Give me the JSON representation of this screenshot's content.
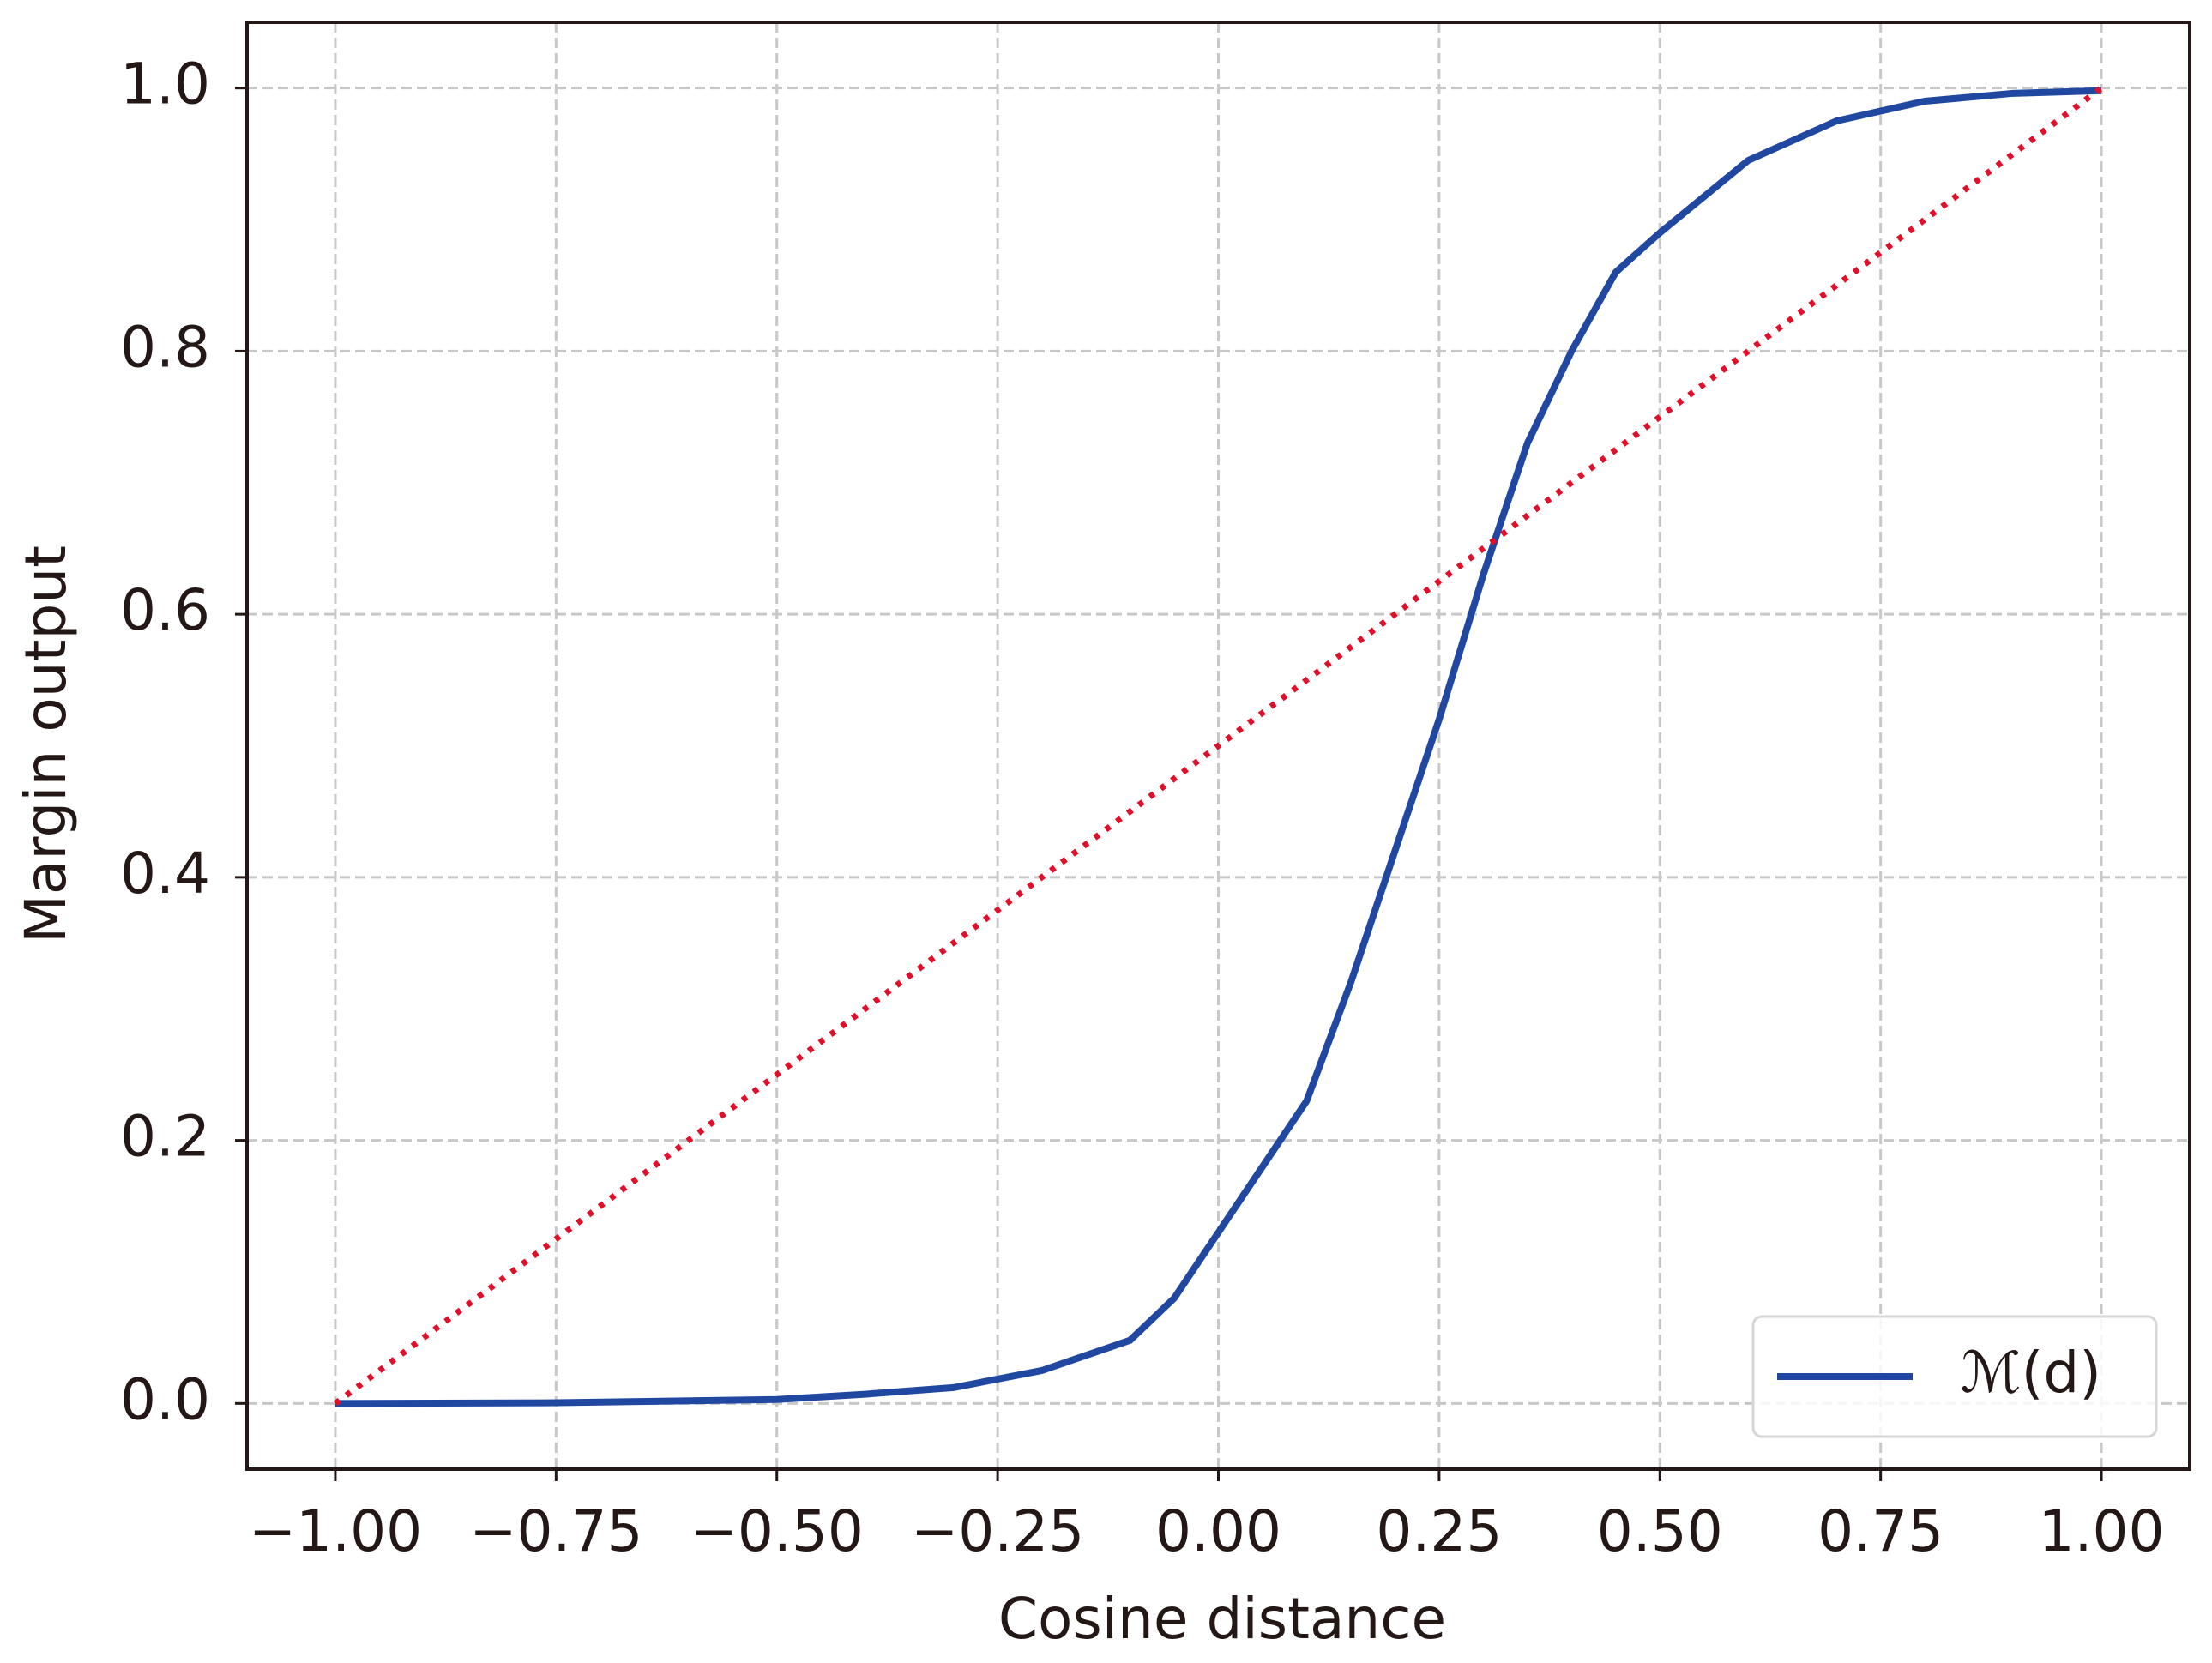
{
  "chart_data": {
    "type": "line",
    "x_label": "Cosine distance",
    "y_label": "Margin output",
    "xlim": [
      -1.1,
      1.1
    ],
    "ylim": [
      -0.05,
      1.05
    ],
    "xticks": [
      {
        "value": -1,
        "label": "−1.00"
      },
      {
        "value": -0.75,
        "label": "−0.75"
      },
      {
        "value": -0.5,
        "label": "−0.50"
      },
      {
        "value": -0.25,
        "label": "−0.25"
      },
      {
        "value": 0,
        "label": "0.00"
      },
      {
        "value": 0.25,
        "label": "0.25"
      },
      {
        "value": 0.5,
        "label": "0.50"
      },
      {
        "value": 0.75,
        "label": "0.75"
      },
      {
        "value": 1,
        "label": "1.00"
      }
    ],
    "yticks": [
      {
        "value": 0,
        "label": "0.0"
      },
      0.2,
      0.4,
      0.6,
      0.8,
      {
        "value": 1,
        "label": "1.0"
      }
    ],
    "grid": true,
    "legend_position": "lower right",
    "series": [
      {
        "name": "ℳ(d)",
        "color": "#2148a0",
        "style": "solid",
        "x": [
          -1,
          -0.75,
          -0.5,
          -0.4,
          -0.3,
          -0.2,
          -0.1,
          -0.05,
          0,
          0.05,
          0.1,
          0.15,
          0.2,
          0.25,
          0.3,
          0.35,
          0.4,
          0.45,
          0.5,
          0.6,
          0.7,
          0.8,
          0.9,
          1
        ],
        "values": [
          0,
          0.0005,
          0.003,
          0.007,
          0.012,
          0.025,
          0.048,
          0.08,
          0.13,
          0.18,
          0.23,
          0.32,
          0.42,
          0.52,
          0.63,
          0.73,
          0.8,
          0.86,
          0.89,
          0.945,
          0.975,
          0.99,
          0.996,
          0.998
        ]
      },
      {
        "color": "#e0102a",
        "style": "dotted",
        "x": [
          -1,
          1
        ],
        "values": [
          0,
          1
        ]
      }
    ]
  }
}
